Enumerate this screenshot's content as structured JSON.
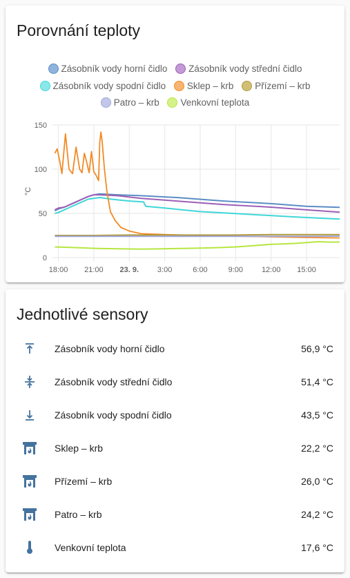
{
  "chart_card": {
    "title": "Porovnání teploty"
  },
  "chart_data": {
    "type": "line",
    "ylabel": "°C",
    "ylim": [
      0,
      150
    ],
    "y_ticks": [
      "0",
      "50",
      "100",
      "150"
    ],
    "x_ticks": [
      "18:00",
      "21:00",
      "23. 9.",
      "3:00",
      "6:00",
      "9:00",
      "12:00",
      "15:00"
    ],
    "x_tick_hours": [
      0,
      3,
      6,
      9,
      12,
      15,
      18,
      21
    ],
    "x_range_hours": [
      -0.5,
      23.8
    ],
    "legend_placement": "top",
    "grid": true,
    "series": [
      {
        "name": "Zásobník vody horní čidlo",
        "color": "#5b8dc4",
        "points": [
          [
            -0.3,
            53
          ],
          [
            0,
            55
          ],
          [
            0.5,
            57
          ],
          [
            1,
            60
          ],
          [
            1.5,
            63
          ],
          [
            2,
            66
          ],
          [
            2.5,
            69
          ],
          [
            3,
            71
          ],
          [
            3.5,
            72
          ],
          [
            5,
            71
          ],
          [
            7,
            70
          ],
          [
            10,
            68
          ],
          [
            14,
            64
          ],
          [
            18,
            61
          ],
          [
            21,
            58
          ],
          [
            23.8,
            56.9
          ]
        ]
      },
      {
        "name": "Zásobník vody střední čidlo",
        "color": "#9c5fb5",
        "points": [
          [
            -0.3,
            54
          ],
          [
            0,
            56
          ],
          [
            0.5,
            57
          ],
          [
            1,
            60
          ],
          [
            1.5,
            63
          ],
          [
            2,
            66
          ],
          [
            2.5,
            69
          ],
          [
            3,
            71
          ],
          [
            3.5,
            71
          ],
          [
            5,
            70
          ],
          [
            7,
            67
          ],
          [
            10,
            64
          ],
          [
            14,
            60
          ],
          [
            18,
            57
          ],
          [
            21,
            54
          ],
          [
            23.8,
            51.4
          ]
        ]
      },
      {
        "name": "Zásobník vody spodní čidlo",
        "color": "#3fd6d8",
        "points": [
          [
            -0.3,
            50
          ],
          [
            0,
            51
          ],
          [
            0.5,
            54
          ],
          [
            1,
            57
          ],
          [
            1.5,
            60
          ],
          [
            2,
            63
          ],
          [
            2.5,
            66
          ],
          [
            3,
            67
          ],
          [
            3.5,
            68
          ],
          [
            4.5,
            66
          ],
          [
            6,
            64
          ],
          [
            7.2,
            63
          ],
          [
            7.4,
            58
          ],
          [
            9,
            56
          ],
          [
            12,
            52
          ],
          [
            16,
            49
          ],
          [
            20,
            46
          ],
          [
            23.8,
            43.5
          ]
        ]
      },
      {
        "name": "Sklep – krb",
        "color": "#f28a24",
        "points": [
          [
            -0.3,
            118
          ],
          [
            -0.1,
            123
          ],
          [
            0.1,
            110
          ],
          [
            0.3,
            95
          ],
          [
            0.6,
            140
          ],
          [
            0.9,
            100
          ],
          [
            1.2,
            95
          ],
          [
            1.5,
            125
          ],
          [
            1.8,
            100
          ],
          [
            2,
            96
          ],
          [
            2.2,
            118
          ],
          [
            2.4,
            108
          ],
          [
            2.6,
            96
          ],
          [
            2.8,
            120
          ],
          [
            3,
            97
          ],
          [
            3.2,
            93
          ],
          [
            3.4,
            87
          ],
          [
            3.5,
            130
          ],
          [
            3.6,
            142
          ],
          [
            3.7,
            132
          ],
          [
            3.9,
            100
          ],
          [
            4.1,
            76
          ],
          [
            4.4,
            52
          ],
          [
            4.8,
            42
          ],
          [
            5.3,
            34
          ],
          [
            6,
            30
          ],
          [
            7,
            27
          ],
          [
            9,
            26
          ],
          [
            12,
            25
          ],
          [
            16,
            24
          ],
          [
            20,
            23
          ],
          [
            23.8,
            22.2
          ]
        ]
      },
      {
        "name": "Přízemí – krb",
        "color": "#b0983a",
        "points": [
          [
            -0.3,
            25
          ],
          [
            3,
            25
          ],
          [
            6,
            25.5
          ],
          [
            9,
            25.5
          ],
          [
            12,
            25.5
          ],
          [
            15,
            25.5
          ],
          [
            18,
            26
          ],
          [
            21,
            26
          ],
          [
            23.8,
            26
          ]
        ]
      },
      {
        "name": "Patro – krb",
        "color": "#9fa7d9",
        "points": [
          [
            -0.3,
            24
          ],
          [
            3,
            24
          ],
          [
            6,
            24
          ],
          [
            9,
            24
          ],
          [
            12,
            24
          ],
          [
            15,
            24
          ],
          [
            18,
            24
          ],
          [
            21,
            24
          ],
          [
            23.8,
            24.2
          ]
        ]
      },
      {
        "name": "Venkovní teplota",
        "color": "#b7e63f",
        "points": [
          [
            -0.3,
            12
          ],
          [
            1,
            11.5
          ],
          [
            3,
            10.5
          ],
          [
            5,
            10
          ],
          [
            7,
            9.5
          ],
          [
            9,
            10
          ],
          [
            11,
            10.5
          ],
          [
            13,
            11
          ],
          [
            15,
            12
          ],
          [
            16,
            13
          ],
          [
            17,
            14
          ],
          [
            18,
            15
          ],
          [
            19,
            15.5
          ],
          [
            20,
            16
          ],
          [
            21,
            17
          ],
          [
            22,
            18
          ],
          [
            23,
            17.5
          ],
          [
            23.8,
            17.6
          ]
        ]
      }
    ]
  },
  "sensors_card": {
    "title": "Jednotlivé sensory",
    "items": [
      {
        "name": "Zásobník vody horní čidlo",
        "value": "56,9 °C",
        "icon": "arrow-collapse-up-icon"
      },
      {
        "name": "Zásobník vody střední čidlo",
        "value": "51,4 °C",
        "icon": "arrow-collapse-vertical-icon"
      },
      {
        "name": "Zásobník vody spodní čidlo",
        "value": "43,5 °C",
        "icon": "arrow-collapse-down-icon"
      },
      {
        "name": "Sklep – krb",
        "value": "22,2 °C",
        "icon": "fireplace-icon"
      },
      {
        "name": "Přízemí – krb",
        "value": "26,0 °C",
        "icon": "fireplace-icon"
      },
      {
        "name": "Patro – krb",
        "value": "24,2 °C",
        "icon": "fireplace-icon"
      },
      {
        "name": "Venkovní teplota",
        "value": "17,6 °C",
        "icon": "thermometer-icon"
      }
    ]
  }
}
